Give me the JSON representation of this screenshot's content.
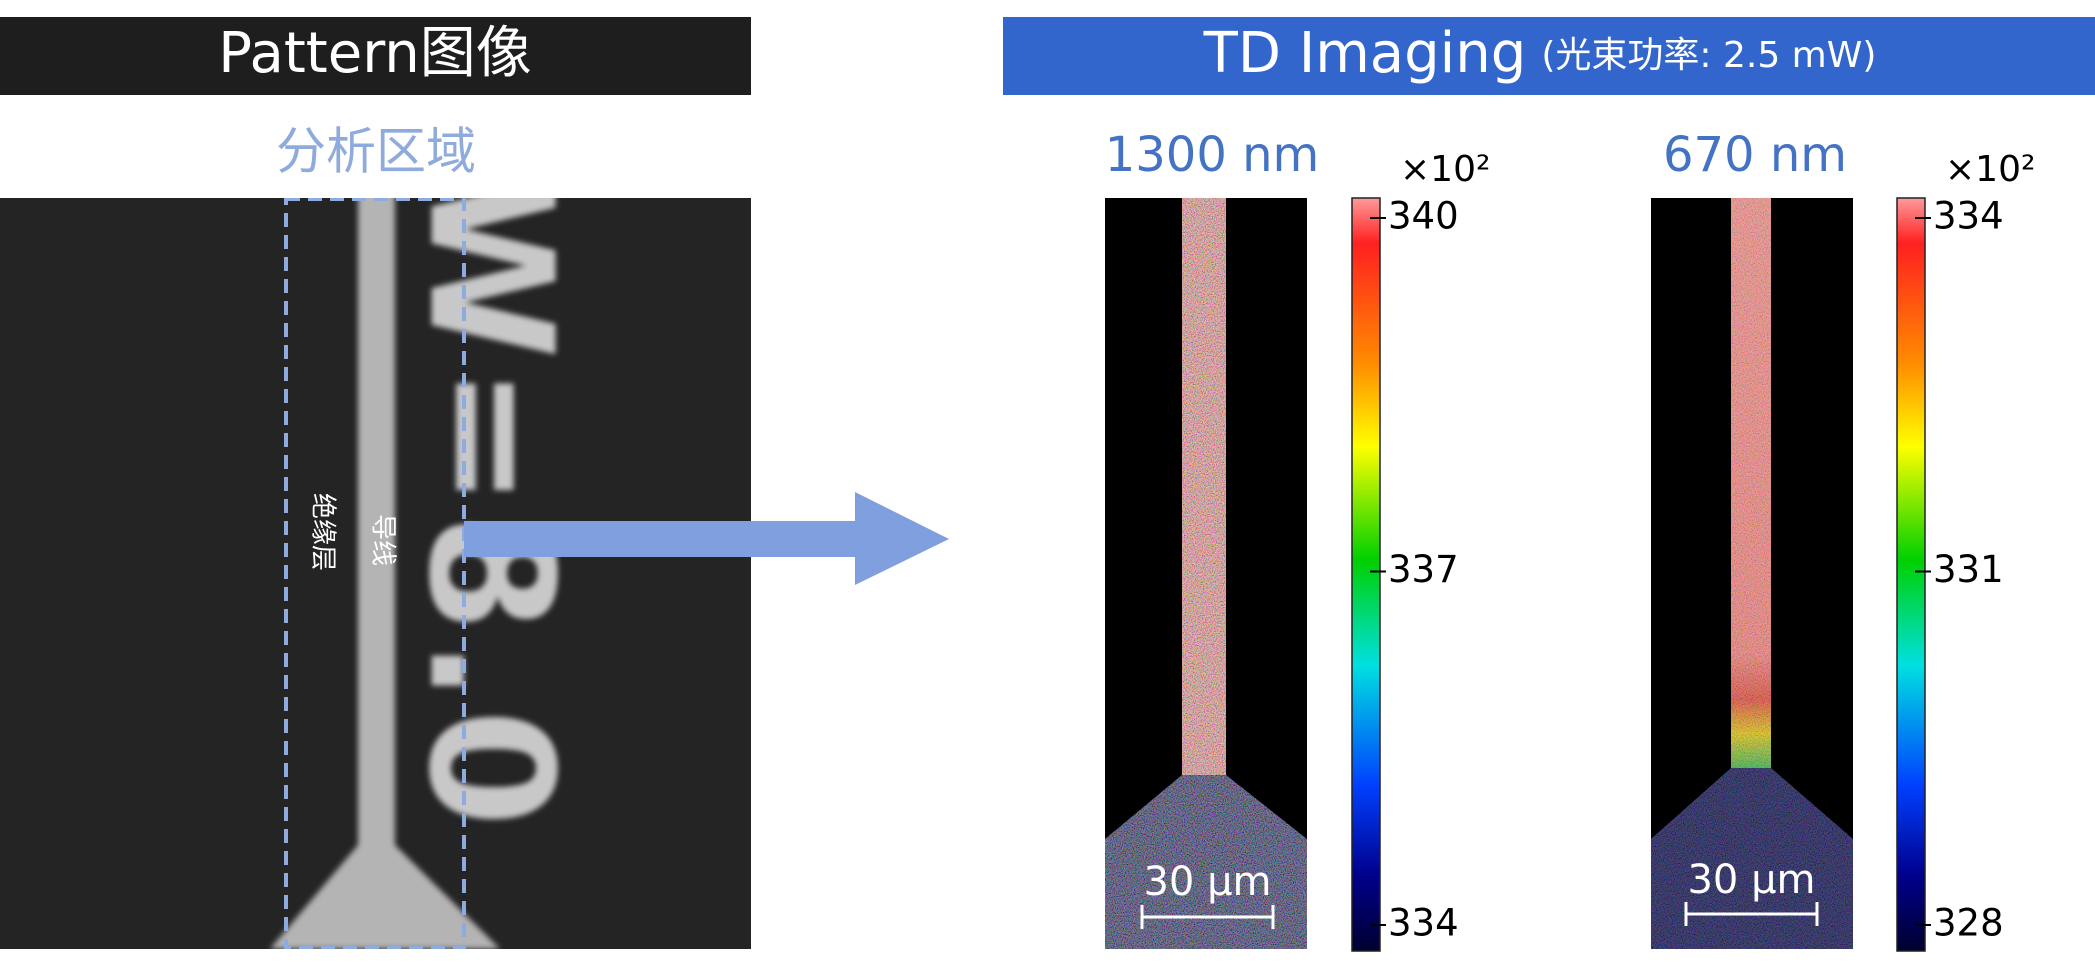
{
  "left_panel": {
    "title": "Pattern图像",
    "region_label": "分析区域",
    "wire_label": "导线",
    "insulator_label": "绝缘层",
    "sample_text": "W=8.0"
  },
  "right_panel": {
    "title": "TD Imaging",
    "subtitle": "(光束功率: 2.5 mW)",
    "images": [
      {
        "wavelength": "1300 nm",
        "scale_bar": "30 μm",
        "colorbar": {
          "multiplier": "×10²",
          "ticks": [
            340,
            337,
            334
          ]
        }
      },
      {
        "wavelength": "670 nm",
        "scale_bar": "30 μm",
        "colorbar": {
          "multiplier": "×10²",
          "ticks": [
            334,
            331,
            328
          ]
        }
      }
    ]
  }
}
